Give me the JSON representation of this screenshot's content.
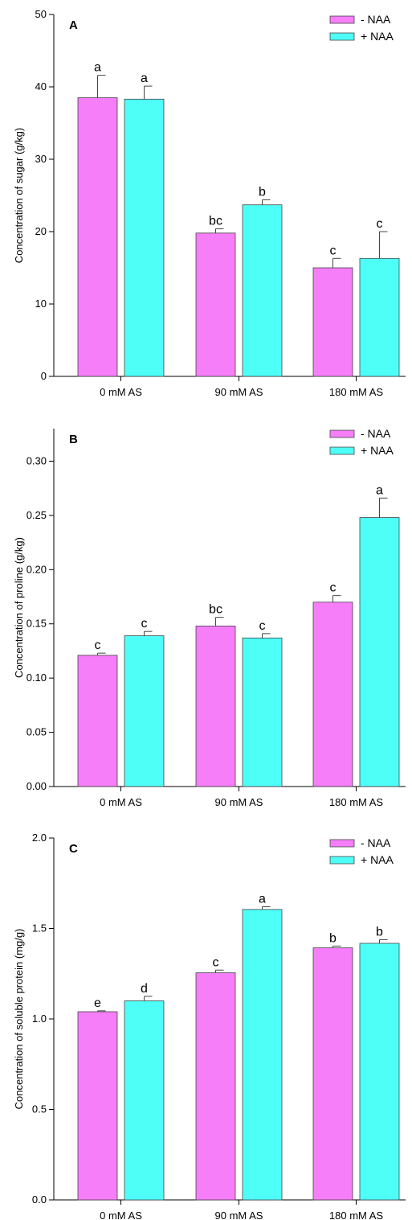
{
  "legend": {
    "minus_label": "- NAA",
    "plus_label": "+ NAA",
    "minus_color": "#f67ef8",
    "plus_color": "#4efff8"
  },
  "chart_data": [
    {
      "type": "bar",
      "panel_label": "A",
      "ylabel": "Concentration of sugar (g/kg)",
      "categories": [
        "0 mM AS",
        "90 mM AS",
        "180 mM AS"
      ],
      "ylim": [
        0,
        50
      ],
      "yticks": [
        0,
        10,
        20,
        30,
        40,
        50
      ],
      "ytick_labels": [
        "0",
        "10",
        "20",
        "30",
        "40",
        "50"
      ],
      "legend_position": "top-right",
      "series": [
        {
          "name": "- NAA",
          "values": [
            38.5,
            19.8,
            15.0
          ],
          "errors": [
            3.1,
            0.6,
            1.3
          ],
          "letters": [
            "a",
            "bc",
            "c"
          ]
        },
        {
          "name": "+ NAA",
          "values": [
            38.3,
            23.7,
            16.3
          ],
          "errors": [
            1.8,
            0.7,
            3.7
          ],
          "letters": [
            "a",
            "b",
            "c"
          ]
        }
      ]
    },
    {
      "type": "bar",
      "panel_label": "B",
      "ylabel": "Concentration of proline (g/kg)",
      "categories": [
        "0 mM AS",
        "90 mM AS",
        "180 mM AS"
      ],
      "ylim": [
        0,
        0.33
      ],
      "yticks": [
        0,
        0.05,
        0.1,
        0.15,
        0.2,
        0.25,
        0.3
      ],
      "ytick_labels": [
        "0.00",
        "0.05",
        "0.10",
        "0.15",
        "0.20",
        "0.25",
        "0.30"
      ],
      "legend_position": "top-right",
      "series": [
        {
          "name": "- NAA",
          "values": [
            0.121,
            0.148,
            0.17
          ],
          "errors": [
            0.002,
            0.008,
            0.006
          ],
          "letters": [
            "c",
            "bc",
            "c"
          ]
        },
        {
          "name": "+ NAA",
          "values": [
            0.139,
            0.137,
            0.248
          ],
          "errors": [
            0.004,
            0.004,
            0.018
          ],
          "letters": [
            "c",
            "c",
            "a"
          ]
        }
      ]
    },
    {
      "type": "bar",
      "panel_label": "C",
      "ylabel": "Concentration of soluble protein (mg/g)",
      "categories": [
        "0 mM AS",
        "90 mM AS",
        "180 mM AS"
      ],
      "ylim": [
        0,
        2.0
      ],
      "yticks": [
        0,
        0.5,
        1.0,
        1.5,
        2.0
      ],
      "ytick_labels": [
        "0.0",
        "0.5",
        "1.0",
        "1.5",
        "2.0"
      ],
      "legend_position": "top-right",
      "series": [
        {
          "name": "- NAA",
          "values": [
            1.04,
            1.255,
            1.393
          ],
          "errors": [
            0.005,
            0.015,
            0.01
          ],
          "letters": [
            "e",
            "c",
            "b"
          ]
        },
        {
          "name": "+ NAA",
          "values": [
            1.1,
            1.605,
            1.418
          ],
          "errors": [
            0.025,
            0.015,
            0.02
          ],
          "letters": [
            "d",
            "a",
            "b"
          ]
        }
      ]
    }
  ]
}
